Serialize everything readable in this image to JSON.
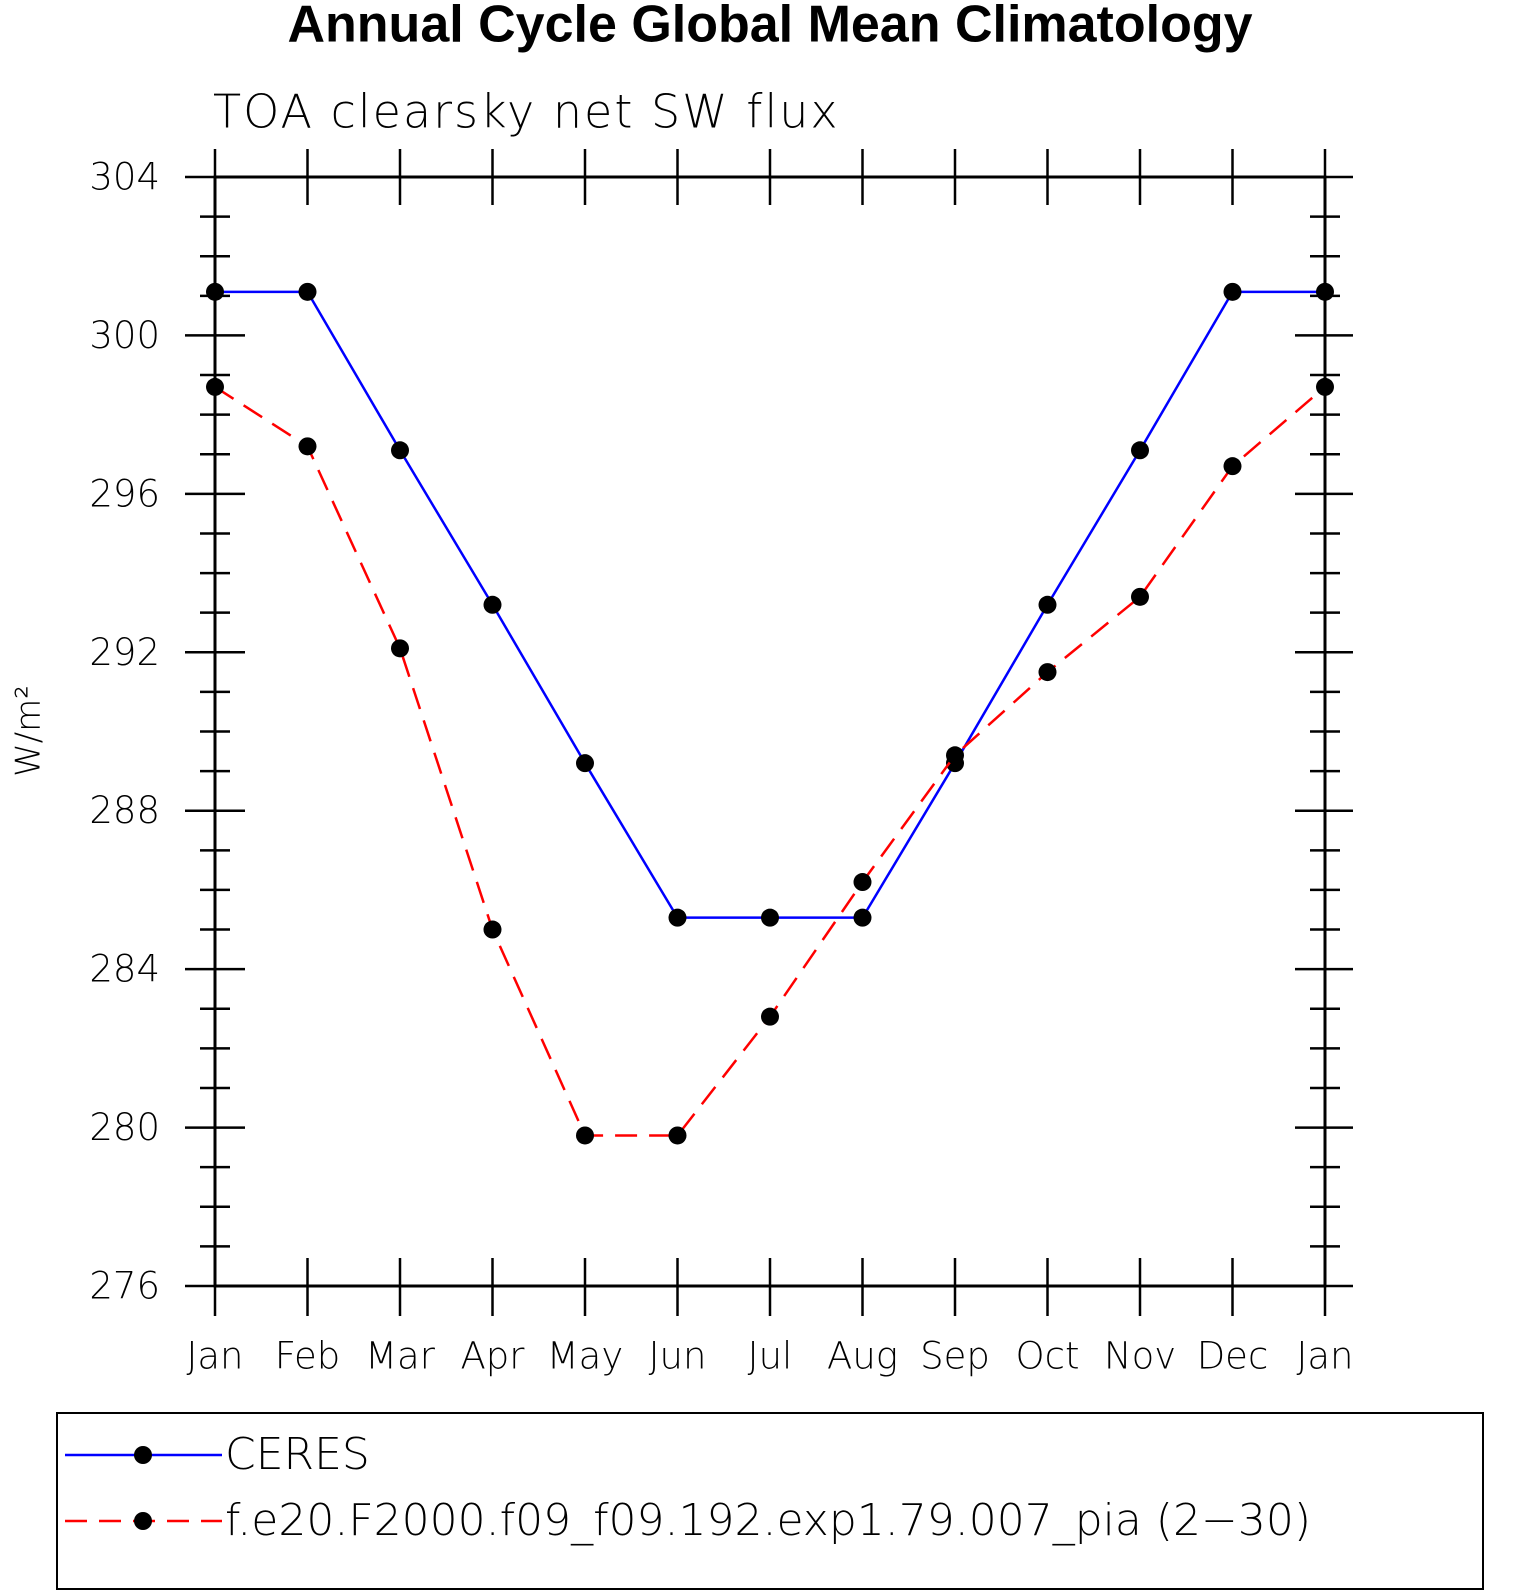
{
  "chart_data": {
    "type": "line",
    "title": "Annual Cycle Global Mean Climatology",
    "subtitle": "TOA clearsky net SW flux",
    "y_label": "W/m²",
    "categories": [
      "Jan",
      "Feb",
      "Mar",
      "Apr",
      "May",
      "Jun",
      "Jul",
      "Aug",
      "Sep",
      "Oct",
      "Nov",
      "Dec",
      "Jan"
    ],
    "series": [
      {
        "name": "CERES",
        "color": "#0000ff",
        "linestyle": "solid",
        "marker_color": "#000000",
        "values": [
          301.1,
          301.1,
          297.1,
          293.2,
          289.2,
          285.3,
          285.3,
          285.3,
          289.2,
          293.2,
          297.1,
          301.1,
          301.1
        ]
      },
      {
        "name": "f.e20.F2000.f09_f09.192.exp1.79.007_pia (2−30)",
        "color": "#ff0000",
        "linestyle": "dashed",
        "marker_color": "#000000",
        "values": [
          298.7,
          297.2,
          292.1,
          285.0,
          279.8,
          279.8,
          282.8,
          286.2,
          289.4,
          291.5,
          293.4,
          296.7,
          298.7
        ]
      }
    ],
    "ylim": [
      276,
      304
    ],
    "yticks": [
      276,
      280,
      284,
      288,
      292,
      296,
      300,
      304
    ]
  }
}
